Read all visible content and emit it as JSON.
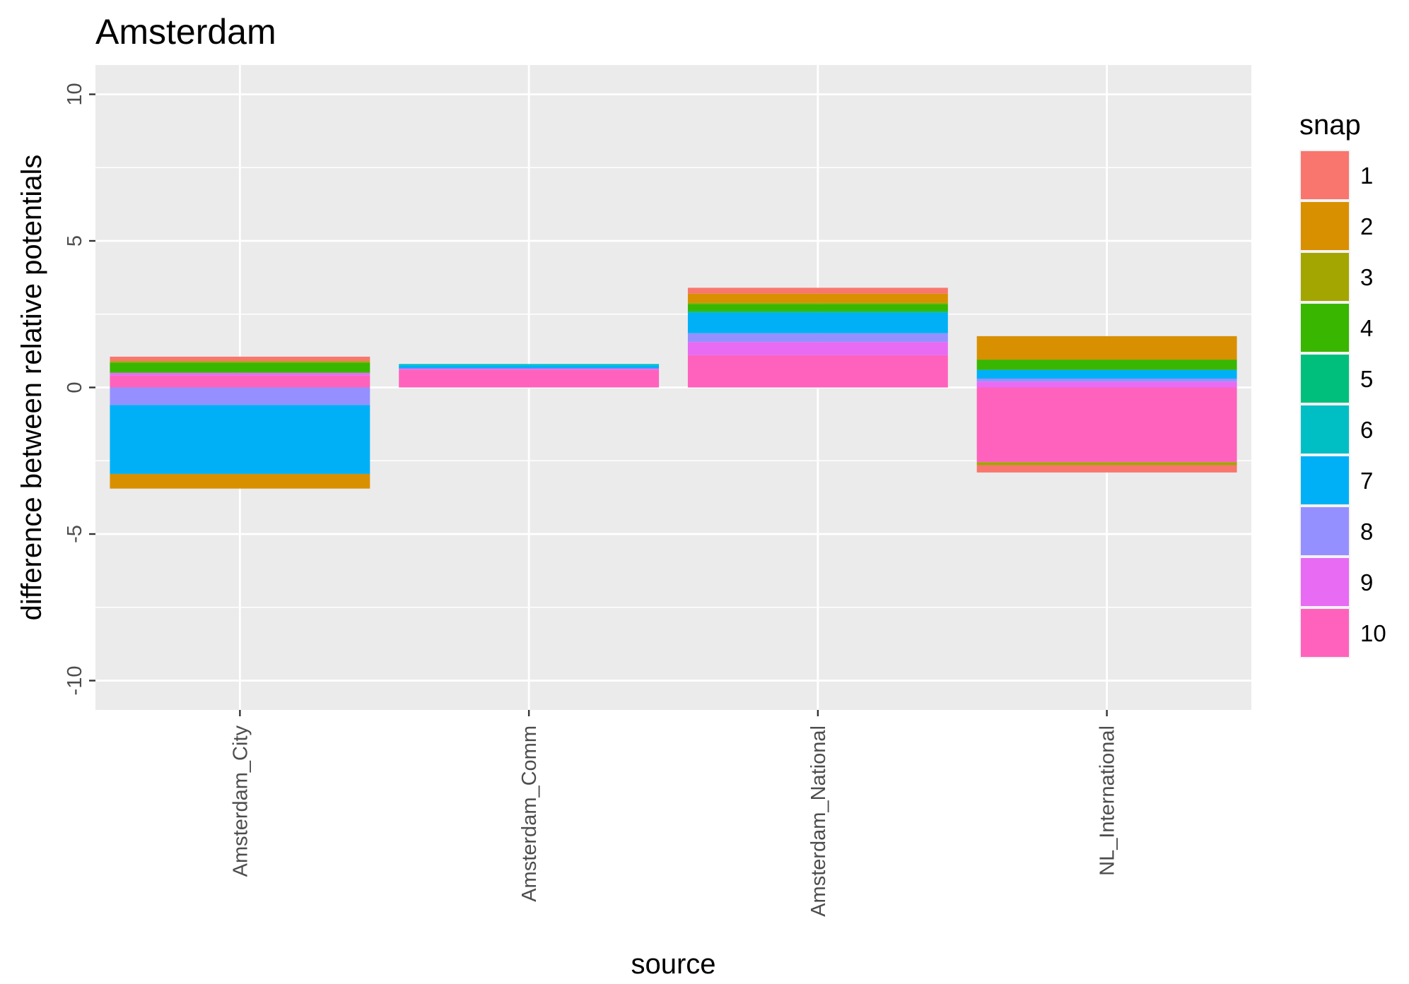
{
  "chart_data": {
    "type": "bar",
    "stacked": true,
    "title": "Amsterdam",
    "xlabel": "source",
    "ylabel": "difference between relative potentials",
    "categories": [
      "Amsterdam_City",
      "Amsterdam_Comm",
      "Amsterdam_National",
      "NL_International"
    ],
    "ylim": [
      -11,
      11
    ],
    "yticks": [
      -10,
      -5,
      0,
      5,
      10
    ],
    "grid": true,
    "legend": {
      "title": "snap",
      "position": "right"
    },
    "series": [
      {
        "name": "1",
        "color": "#F8766D",
        "values": [
          0.15,
          0.0,
          0.2,
          -0.25
        ]
      },
      {
        "name": "2",
        "color": "#D89000",
        "values": [
          -0.5,
          0.0,
          0.3,
          0.8
        ]
      },
      {
        "name": "3",
        "color": "#A3A500",
        "values": [
          0.05,
          0.0,
          0.05,
          -0.1
        ]
      },
      {
        "name": "4",
        "color": "#39B600",
        "values": [
          0.35,
          0.0,
          0.25,
          0.35
        ]
      },
      {
        "name": "5",
        "color": "#00BF7D",
        "values": [
          0.0,
          0.0,
          0.05,
          0.0
        ]
      },
      {
        "name": "6",
        "color": "#00BFC4",
        "values": [
          0.0,
          0.05,
          0.0,
          0.0
        ]
      },
      {
        "name": "7",
        "color": "#00B0F6",
        "values": [
          -2.35,
          0.1,
          0.7,
          0.3
        ]
      },
      {
        "name": "8",
        "color": "#9590FF",
        "values": [
          -0.6,
          0.0,
          0.3,
          0.1
        ]
      },
      {
        "name": "9",
        "color": "#E76BF3",
        "values": [
          0.1,
          0.05,
          0.45,
          0.2
        ]
      },
      {
        "name": "10",
        "color": "#FF62BC",
        "values": [
          0.4,
          0.6,
          1.1,
          -2.55
        ]
      }
    ]
  }
}
